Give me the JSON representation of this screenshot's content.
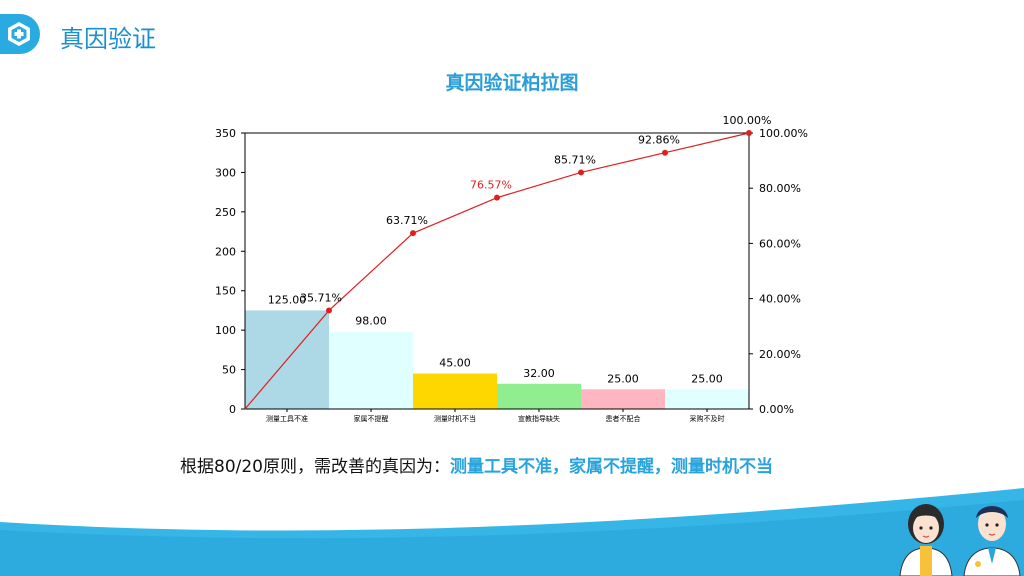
{
  "header": {
    "title": "真因验证"
  },
  "conclusion": {
    "prefix": "根据80/20原则，需改善的真因为：",
    "highlight": "测量工具不准，家属不提醒，测量时机不当"
  },
  "colors": {
    "accent": "#29abe2",
    "line": "#e02020",
    "highlight_label": "#e02020"
  },
  "chart_data": {
    "type": "bar",
    "title": "真因验证柏拉图",
    "categories": [
      "测量工具不准",
      "家属不提醒",
      "测量时机不当",
      "宣教指导缺失",
      "患者不配合",
      "采购不及时"
    ],
    "values": [
      125,
      98,
      45,
      32,
      25,
      25
    ],
    "value_labels": [
      "125.00",
      "98.00",
      "45.00",
      "32.00",
      "25.00",
      "25.00"
    ],
    "bar_colors": [
      "#add8e6",
      "#e0ffff",
      "#ffd700",
      "#90ee90",
      "#ffb6c1",
      "#e0ffff"
    ],
    "cumulative_percent": [
      35.71,
      63.71,
      76.57,
      85.71,
      92.86,
      100.0
    ],
    "cumulative_labels": [
      "35.71%",
      "63.71%",
      "76.57%",
      "85.71%",
      "92.86%",
      "100.00%"
    ],
    "highlight_index": 2,
    "ylim": [
      0,
      350
    ],
    "yticks": [
      "0",
      "50",
      "100",
      "150",
      "200",
      "250",
      "300",
      "350"
    ],
    "y2lim": [
      0,
      100
    ],
    "y2ticks": [
      "0.00%",
      "20.00%",
      "40.00%",
      "60.00%",
      "80.00%",
      "100.00%"
    ],
    "grid": false
  }
}
